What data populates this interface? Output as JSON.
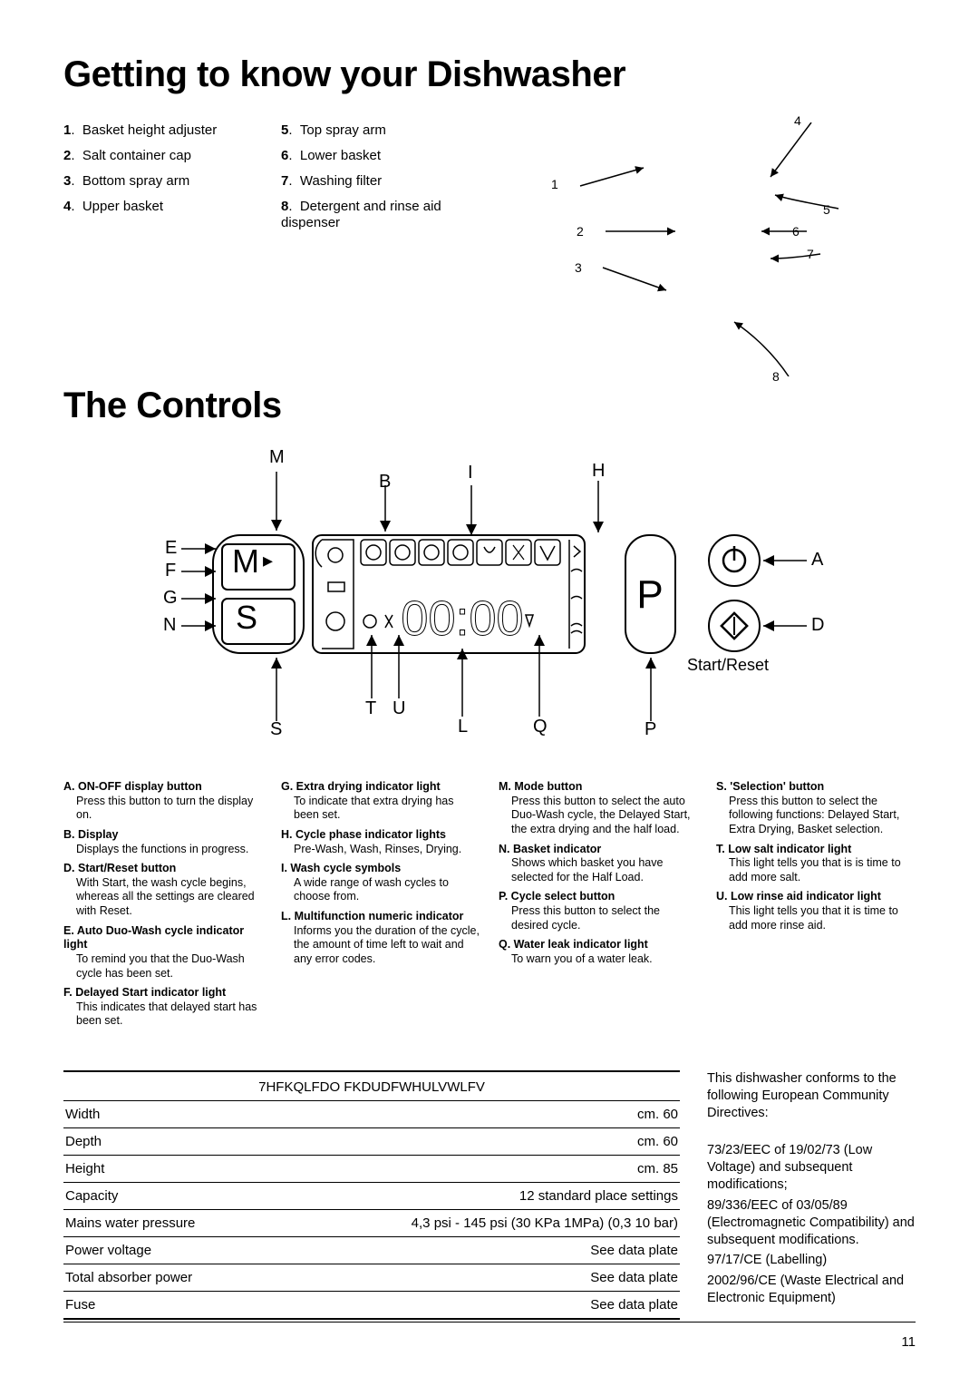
{
  "title1": "Getting to know your Dishwasher",
  "title2": "The Controls",
  "parts_left": [
    {
      "n": "1",
      "t": "Basket height adjuster"
    },
    {
      "n": "2",
      "t": "Salt container cap"
    },
    {
      "n": "3",
      "t": "Bottom spray arm"
    },
    {
      "n": "4",
      "t": "Upper basket"
    }
  ],
  "parts_right": [
    {
      "n": "5",
      "t": "Top spray arm"
    },
    {
      "n": "6",
      "t": "Lower basket"
    },
    {
      "n": "7",
      "t": "Washing filter"
    },
    {
      "n": "8",
      "t": "Detergent and rinse aid dispenser"
    }
  ],
  "diagram_labels": {
    "l1": "1",
    "l2": "2",
    "l3": "3",
    "l4": "4",
    "l5": "5",
    "l6": "6",
    "l7": "7",
    "l8": "8"
  },
  "panel_labels": {
    "M_top": "M",
    "B": "B",
    "I": "I",
    "H": "H",
    "E": "E",
    "F": "F",
    "G": "G",
    "N": "N",
    "S_bottom": "S",
    "T": "T",
    "U": "U",
    "L": "L",
    "Q": "Q",
    "P_bottom": "P",
    "A": "A",
    "D": "D",
    "start_reset": "Start/Reset",
    "M_btn": "M",
    "S_btn": "S",
    "P_btn": "P",
    "tri": "▸",
    "digits": "00:00"
  },
  "controls": {
    "col1": [
      {
        "l": "A.",
        "t": "ON-OFF display button",
        "b": "Press this button to turn the display on."
      },
      {
        "l": "B.",
        "t": "Display",
        "b": "Displays the functions in progress."
      },
      {
        "l": "D.",
        "t": "Start/Reset button",
        "b": "With Start, the wash cycle begins, whereas all the settings are cleared with Reset."
      },
      {
        "l": "E.",
        "t": "Auto Duo-Wash cycle indicator light",
        "b": "To remind you that the Duo-Wash cycle has been set."
      },
      {
        "l": "F.",
        "t": "Delayed Start  indicator light",
        "b": "This indicates that delayed start has been set."
      }
    ],
    "col2": [
      {
        "l": "G.",
        "t": "Extra drying indicator light",
        "b": "To indicate that extra drying has been set."
      },
      {
        "l": "H.",
        "t": "Cycle phase indicator lights",
        "b": "Pre-Wash, Wash, Rinses, Drying."
      },
      {
        "l": "I.",
        "t": "Wash cycle symbols",
        "b": "A wide range of wash cycles to choose from."
      },
      {
        "l": "L.",
        "t": "Multifunction numeric indicator",
        "b": "Informs you the duration of the cycle, the amount of time left to wait and any error codes."
      }
    ],
    "col3": [
      {
        "l": "M.",
        "t": "Mode button",
        "b": "Press this button to select the auto Duo-Wash cycle, the Delayed Start, the extra drying and the half load."
      },
      {
        "l": "N.",
        "t": "Basket indicator",
        "b": "Shows which basket you have selected for the Half Load."
      },
      {
        "l": "P.",
        "t": "Cycle select button",
        "b": "Press this button to select the desired cycle."
      },
      {
        "l": "Q.",
        "t": "Water leak indicator light",
        "b": "To warn you of a water leak."
      }
    ],
    "col4": [
      {
        "l": "S.",
        "t": "'Selection' button",
        "b": "Press this button to select the following functions: Delayed Start, Extra Drying, Basket selection."
      },
      {
        "l": "T.",
        "t": "Low salt indicator light",
        "b": "This light tells you that is is time to add more salt."
      },
      {
        "l": "U.",
        "t": "Low rinse aid indicator light",
        "b": "This light tells you that it is time to add more rinse aid."
      }
    ]
  },
  "specs": {
    "header": "7HFKQLFDO FKDUDFWHULVWLFV",
    "rows": [
      {
        "k": "Width",
        "v": "cm.  60"
      },
      {
        "k": "Depth",
        "v": "cm.  60"
      },
      {
        "k": "Height",
        "v": "cm.  85"
      },
      {
        "k": "Capacity",
        "v": "12 standard place settings"
      },
      {
        "k": "Mains water pressure",
        "v": "4,3 psi - 145 psi  (30 KPa  1MPa)  (0,3  10 bar)"
      },
      {
        "k": "Power voltage",
        "v": "See data plate"
      },
      {
        "k": "Total absorber power",
        "v": "See data plate"
      },
      {
        "k": "Fuse",
        "v": "See data plate"
      }
    ]
  },
  "directives": {
    "intro": "This dishwasher conforms to the following European Community Directives:",
    "items": [
      "  73/23/EEC of 19/02/73 (Low Voltage) and subsequent modifications;",
      "  89/336/EEC of 03/05/89 (Electromagnetic Compatibility) and subsequent modifications.",
      "  97/17/CE (Labelling)",
      "  2002/96/CE (Waste Electrical and Electronic Equipment)"
    ]
  },
  "page_number": "11"
}
